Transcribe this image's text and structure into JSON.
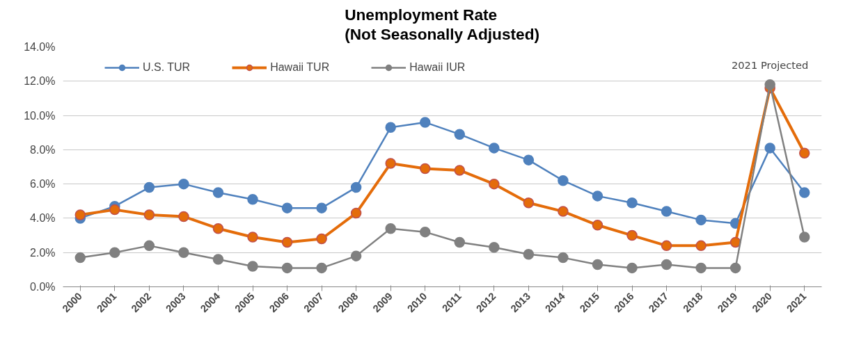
{
  "chart_data": {
    "type": "line",
    "title": "Unemployment Rate\n(Not Seasonally Adjusted)",
    "categories": [
      "2000",
      "2001",
      "2002",
      "2003",
      "2004",
      "2005",
      "2006",
      "2007",
      "2008",
      "2009",
      "2010",
      "2011",
      "2012",
      "2013",
      "2014",
      "2015",
      "2016",
      "2017",
      "2018",
      "2019",
      "2020",
      "2021"
    ],
    "series": [
      {
        "name": "U.S. TUR",
        "color": "#4f81bd",
        "values": [
          4.0,
          4.7,
          5.8,
          6.0,
          5.5,
          5.1,
          4.6,
          4.6,
          5.8,
          9.3,
          9.6,
          8.9,
          8.1,
          7.4,
          6.2,
          5.3,
          4.9,
          4.4,
          3.9,
          3.7,
          8.1,
          5.5
        ]
      },
      {
        "name": "Hawaii TUR",
        "color": "#e46c0a",
        "values": [
          4.2,
          4.5,
          4.2,
          4.1,
          3.4,
          2.9,
          2.6,
          2.8,
          4.3,
          7.2,
          6.9,
          6.8,
          6.0,
          4.9,
          4.4,
          3.6,
          3.0,
          2.4,
          2.4,
          2.6,
          11.6,
          7.8
        ]
      },
      {
        "name": "Hawaii IUR",
        "color": "#808080",
        "values": [
          1.7,
          2.0,
          2.4,
          2.0,
          1.6,
          1.2,
          1.1,
          1.1,
          1.8,
          3.4,
          3.2,
          2.6,
          2.3,
          1.9,
          1.7,
          1.3,
          1.1,
          1.3,
          1.1,
          1.1,
          11.8,
          2.9
        ]
      }
    ],
    "ylim": [
      0,
      14
    ],
    "yticks": [
      {
        "value": 0,
        "label": "0.0%"
      },
      {
        "value": 2,
        "label": "2.0%"
      },
      {
        "value": 4,
        "label": "4.0%"
      },
      {
        "value": 6,
        "label": "6.0%"
      },
      {
        "value": 8,
        "label": "8.0%"
      },
      {
        "value": 10,
        "label": "10.0%"
      },
      {
        "value": 12,
        "label": "12.0%"
      },
      {
        "value": 14,
        "label": "14.0%"
      }
    ],
    "grid": "y",
    "legend": "top",
    "marker": "circle",
    "line_style": "solid",
    "annotations": [
      "2021 Projected"
    ]
  }
}
